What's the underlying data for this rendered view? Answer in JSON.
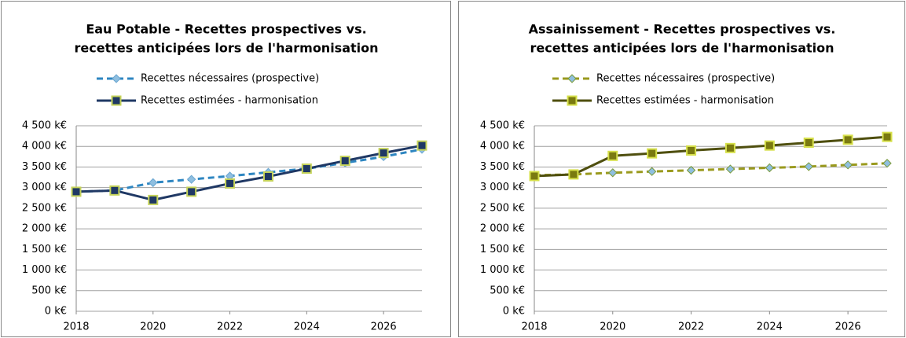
{
  "chart_data": [
    {
      "type": "line",
      "title": [
        "Eau Potable - Recettes prospectives vs.",
        "recettes anticipées lors de l'harmonisation"
      ],
      "x": [
        2018,
        2019,
        2020,
        2021,
        2022,
        2023,
        2024,
        2025,
        2026,
        2027
      ],
      "xlim": [
        2018,
        2027
      ],
      "xticks": [
        2018,
        2020,
        2022,
        2024,
        2026
      ],
      "ylim": [
        0,
        4500
      ],
      "yticks": [
        {
          "value": 0,
          "label": "0 k€"
        },
        {
          "value": 500,
          "label": "500 k€"
        },
        {
          "value": 1000,
          "label": "1 000 k€"
        },
        {
          "value": 1500,
          "label": "1 500 k€"
        },
        {
          "value": 2000,
          "label": "2 000 k€"
        },
        {
          "value": 2500,
          "label": "2 500 k€"
        },
        {
          "value": 3000,
          "label": "3 000 k€"
        },
        {
          "value": 3500,
          "label": "3 500 k€"
        },
        {
          "value": 4000,
          "label": "4 000 k€"
        },
        {
          "value": 4500,
          "label": "4 500 k€"
        }
      ],
      "grid": true,
      "series": [
        {
          "name": "Recettes nécessaires (prospective)",
          "color": "#2e86c1",
          "dash": true,
          "marker": "diamond",
          "marker_fill": "#8fbfe0",
          "marker_edge": "#6aa6d0",
          "values": [
            2900,
            2930,
            3120,
            3200,
            3280,
            3370,
            3460,
            3600,
            3750,
            3930
          ]
        },
        {
          "name": "Recettes estimées - harmonisation",
          "color": "#1f3864",
          "dash": false,
          "marker": "square",
          "marker_fill": "#1f3864",
          "marker_edge": "#c5d35a",
          "values": [
            2900,
            2930,
            2700,
            2900,
            3100,
            3270,
            3460,
            3650,
            3840,
            4020
          ]
        }
      ]
    },
    {
      "type": "line",
      "title": [
        "Assainissement - Recettes prospectives vs.",
        "recettes anticipées lors de l'harmonisation"
      ],
      "x": [
        2018,
        2019,
        2020,
        2021,
        2022,
        2023,
        2024,
        2025,
        2026,
        2027
      ],
      "xlim": [
        2018,
        2027
      ],
      "xticks": [
        2018,
        2020,
        2022,
        2024,
        2026
      ],
      "ylim": [
        0,
        4500
      ],
      "yticks": [
        {
          "value": 0,
          "label": "0 k€"
        },
        {
          "value": 500,
          "label": "500 k€"
        },
        {
          "value": 1000,
          "label": "1 000 k€"
        },
        {
          "value": 1500,
          "label": "1 500 k€"
        },
        {
          "value": 2000,
          "label": "2 000 k€"
        },
        {
          "value": 2500,
          "label": "2 500 k€"
        },
        {
          "value": 3000,
          "label": "3 000 k€"
        },
        {
          "value": 3500,
          "label": "3 500 k€"
        },
        {
          "value": 4000,
          "label": "4 000 k€"
        },
        {
          "value": 4500,
          "label": "4 500 k€"
        }
      ],
      "grid": true,
      "series": [
        {
          "name": "Recettes nécessaires (prospective)",
          "color": "#9a9a1e",
          "dash": true,
          "marker": "diamond",
          "marker_fill": "#8fbfe0",
          "marker_edge": "#7a9a3a",
          "values": [
            3300,
            3320,
            3360,
            3390,
            3420,
            3450,
            3480,
            3510,
            3550,
            3590
          ]
        },
        {
          "name": "Recettes estimées - harmonisation",
          "color": "#4f4f0f",
          "dash": false,
          "marker": "square",
          "marker_fill": "#7a7a10",
          "marker_edge": "#d6e04a",
          "values": [
            3280,
            3320,
            3770,
            3830,
            3900,
            3960,
            4020,
            4090,
            4160,
            4230
          ]
        }
      ]
    }
  ]
}
